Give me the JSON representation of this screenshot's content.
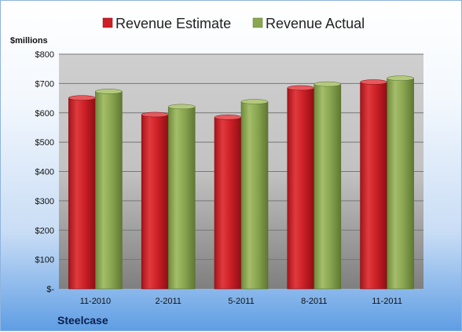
{
  "chart_data": {
    "type": "bar",
    "title": "",
    "company": "Steelcase",
    "ylabel": "$millions",
    "xlabel": "",
    "categories": [
      "11-2010",
      "2-2011",
      "5-2011",
      "8-2011",
      "11-2011"
    ],
    "series": [
      {
        "name": "Revenue Estimate",
        "values": [
          651,
          594,
          585,
          685,
          705
        ],
        "color": "#cc1f26"
      },
      {
        "name": "Revenue Actual",
        "values": [
          673,
          621,
          638,
          698,
          718
        ],
        "color": "#8aa650"
      }
    ],
    "ylim": [
      0,
      800
    ],
    "yticks": [
      0,
      100,
      200,
      300,
      400,
      500,
      600,
      700,
      800
    ],
    "ytick_labels": [
      "$-",
      "$100",
      "$200",
      "$300",
      "$400",
      "$500",
      "$600",
      "$700",
      "$800"
    ],
    "legend": "top",
    "grid": true
  }
}
